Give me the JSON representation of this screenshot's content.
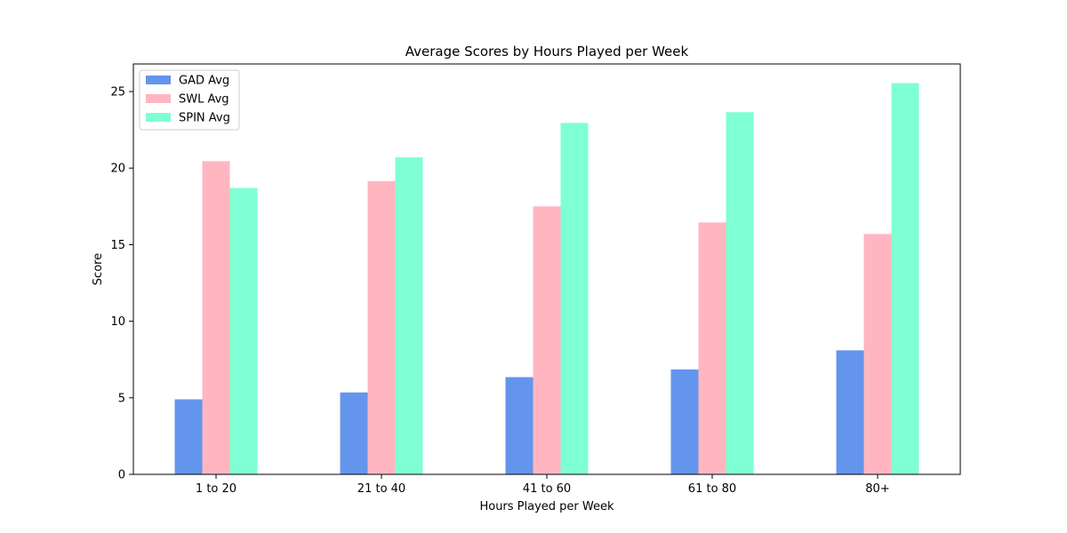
{
  "chart_data": {
    "type": "bar",
    "title": "Average Scores by Hours Played per Week",
    "xlabel": "Hours Played per Week",
    "ylabel": "Score",
    "categories": [
      "1 to 20",
      "21 to 40",
      "41 to 60",
      "61 to 80",
      "80+"
    ],
    "series": [
      {
        "name": "GAD Avg",
        "color": "#6495ED",
        "values": [
          4.9,
          5.35,
          6.35,
          6.85,
          8.1
        ]
      },
      {
        "name": "SWL Avg",
        "color": "#FFB6C1",
        "values": [
          20.45,
          19.15,
          17.5,
          16.45,
          15.7
        ]
      },
      {
        "name": "SPIN Avg",
        "color": "#7FFFD4",
        "values": [
          18.7,
          20.7,
          22.95,
          23.65,
          25.55
        ]
      }
    ],
    "ylim": [
      0,
      26.8
    ],
    "yticks": [
      0,
      5,
      10,
      15,
      20,
      25
    ],
    "grid": false,
    "legend_position": "top-left"
  }
}
